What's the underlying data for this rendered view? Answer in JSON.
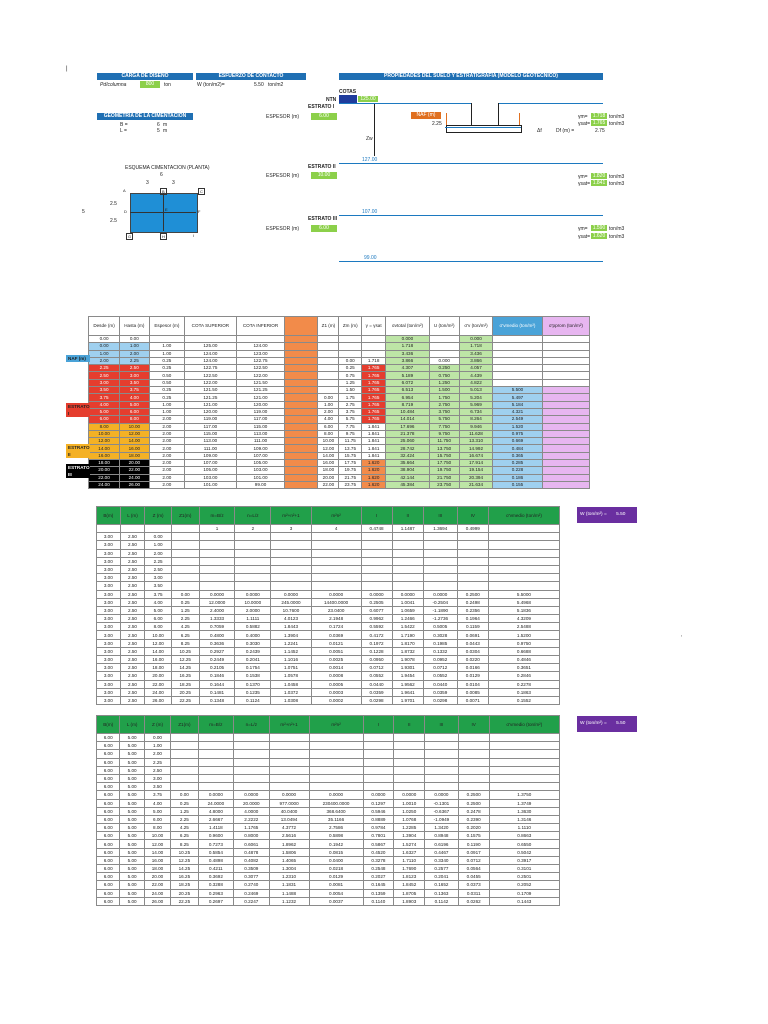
{
  "corner_mark": "|",
  "load": {
    "header": "CARGA DE DISEÑO",
    "label": "Pd/columna",
    "value": "800",
    "unit": "ton"
  },
  "contact": {
    "header": "ESFUERZO DE CONTACTO",
    "label": "W (ton/m2)=",
    "value": "5.50",
    "unit": "ton/m2"
  },
  "soil_header": "PROPIEDADES DEL SUELO Y ESTRATIGRAFIA (MODELO GEOTECNICO)",
  "geometry": {
    "header": "GEOMETRIA DE LA CIMENTACION",
    "rows": [
      {
        "label": "B =",
        "value": "6",
        "unit": "m"
      },
      {
        "label": "L =",
        "value": "5",
        "unit": "m"
      }
    ]
  },
  "profile": {
    "cotas_label": "COTAS",
    "cotas_value": "125.00",
    "ntn_label": "NTN",
    "naf_label": "NAF (m)",
    "naf_value": "2.25",
    "df_label": "Df (m) =",
    "df_value": "2.75",
    "zw_label": "Zw",
    "af_label": "Δf",
    "estrato1": {
      "name": "ESTRATO I",
      "esp_label": "ESPESOR (m)",
      "esp": "6.00",
      "g1": "1.718",
      "g2": "1.765",
      "unit": "ton/m3",
      "cota": "127.00"
    },
    "estrato2": {
      "name": "ESTRATO II",
      "esp_label": "ESPESOR (m)",
      "esp": "10.00",
      "g1": "1.820",
      "g2": "1.841",
      "unit": "ton/m3",
      "cota": "107.00"
    },
    "estrato3": {
      "name": "ESTRATO III",
      "esp_label": "ESPESOR (m)",
      "esp": "6.00",
      "g1": "1.590",
      "g2": "1.620",
      "unit": "ton/m3",
      "cota": "99.00"
    },
    "gm_label": "γm=",
    "gsat_label": "γsat="
  },
  "plan": {
    "title": "ESQUEMA CIMENTACION (PLANTA)",
    "dim_top": "6",
    "dim_half1": "3",
    "dim_half2": "3",
    "dim_left": "5",
    "dim_l1": "2.5",
    "dim_l2": "2.5",
    "points": [
      "A",
      "B",
      "C",
      "D",
      "E",
      "F",
      "G",
      "H",
      "I"
    ]
  },
  "table1": {
    "headers": [
      "Desde (m)",
      "Hasta (m)",
      "Espesor (m)",
      "COTA SUPERIOR",
      "COTA INFERIOR",
      "",
      "Z1 (m)",
      "Zm (m)",
      "γ = γsat",
      "σvtotal (ton/m²)",
      "U (ton/m²)",
      "σ'v (ton/m²)",
      "σ'vmedio (ton/m²)",
      "σ'pprom (ton/m²)"
    ],
    "side_labels": [
      {
        "row": 3,
        "text": "NAF (m)",
        "color": "#4aa3d8"
      },
      {
        "row": 10,
        "text": "ESTRATO I",
        "color": "#e53d2e"
      },
      {
        "row": 16,
        "text": "ESTRATO II",
        "color": "#f4b125"
      },
      {
        "row": 19,
        "text": "ESTRATO III",
        "color": "#000000",
        "fg": "#ffffff"
      }
    ],
    "rows": [
      [
        "0.00",
        "0.00",
        "",
        "",
        "",
        "",
        "",
        "",
        "",
        "0.000",
        "",
        "0.000",
        "",
        ""
      ],
      [
        "0.00",
        "1.00",
        "1.00",
        "125.00",
        "124.00",
        "",
        "",
        "",
        "",
        "1.718",
        "",
        "1.718",
        "",
        ""
      ],
      [
        "1.00",
        "2.00",
        "1.00",
        "124.00",
        "123.00",
        "",
        "",
        "",
        "",
        "3.436",
        "",
        "3.436",
        "",
        ""
      ],
      [
        "2.00",
        "2.25",
        "0.25",
        "124.00",
        "122.75",
        "",
        "",
        "0.00",
        "1.718",
        "3.866",
        "0.000",
        "3.866",
        "",
        ""
      ],
      [
        "2.25",
        "2.50",
        "0.25",
        "122.75",
        "122.50",
        "",
        "",
        "0.25",
        "1.765",
        "4.307",
        "0.250",
        "4.057",
        "",
        ""
      ],
      [
        "2.50",
        "3.00",
        "0.50",
        "122.50",
        "122.00",
        "",
        "",
        "0.75",
        "1.765",
        "5.189",
        "0.750",
        "4.439",
        "",
        ""
      ],
      [
        "3.00",
        "3.50",
        "0.50",
        "122.00",
        "121.50",
        "",
        "",
        "1.25",
        "1.765",
        "6.072",
        "1.250",
        "4.822",
        "",
        ""
      ],
      [
        "3.50",
        "3.75",
        "0.25",
        "121.50",
        "121.25",
        "",
        "",
        "1.50",
        "1.765",
        "6.513",
        "1.500",
        "5.013",
        "5.500",
        ""
      ],
      [
        "3.75",
        "4.00",
        "0.25",
        "121.25",
        "121.00",
        "",
        "0.00",
        "1.75",
        "1.765",
        "6.954",
        "1.750",
        "5.204",
        "5.497",
        ""
      ],
      [
        "4.00",
        "5.00",
        "1.00",
        "121.00",
        "120.00",
        "",
        "1.00",
        "2.75",
        "1.765",
        "8.719",
        "2.750",
        "5.969",
        "5.184",
        ""
      ],
      [
        "5.00",
        "6.00",
        "1.00",
        "120.00",
        "119.00",
        "",
        "2.00",
        "3.75",
        "1.765",
        "10.484",
        "3.750",
        "6.734",
        "4.321",
        ""
      ],
      [
        "6.00",
        "8.00",
        "2.00",
        "119.00",
        "117.00",
        "",
        "4.00",
        "5.75",
        "1.765",
        "14.014",
        "5.750",
        "8.264",
        "2.549",
        ""
      ],
      [
        "8.00",
        "10.00",
        "2.00",
        "117.00",
        "115.00",
        "",
        "6.00",
        "7.75",
        "1.841",
        "17.696",
        "7.750",
        "9.946",
        "1.520",
        ""
      ],
      [
        "10.00",
        "12.00",
        "2.00",
        "115.00",
        "113.00",
        "",
        "8.00",
        "9.75",
        "1.841",
        "21.378",
        "9.750",
        "11.628",
        "0.975",
        ""
      ],
      [
        "12.00",
        "14.00",
        "2.00",
        "113.00",
        "111.00",
        "",
        "10.00",
        "11.75",
        "1.841",
        "25.060",
        "11.750",
        "13.310",
        "0.669",
        ""
      ],
      [
        "14.00",
        "16.00",
        "2.00",
        "111.00",
        "109.00",
        "",
        "12.00",
        "13.75",
        "1.841",
        "28.742",
        "13.750",
        "14.992",
        "0.484",
        ""
      ],
      [
        "16.00",
        "18.00",
        "2.00",
        "109.00",
        "107.00",
        "",
        "14.00",
        "15.75",
        "1.841",
        "32.424",
        "15.750",
        "16.674",
        "0.365",
        ""
      ],
      [
        "18.00",
        "20.00",
        "2.00",
        "107.00",
        "105.00",
        "",
        "16.00",
        "17.75",
        "1.620",
        "35.664",
        "17.750",
        "17.914",
        "0.285",
        ""
      ],
      [
        "20.00",
        "22.00",
        "2.00",
        "105.00",
        "103.00",
        "",
        "18.00",
        "19.75",
        "1.620",
        "38.904",
        "19.750",
        "19.154",
        "0.228",
        ""
      ],
      [
        "22.00",
        "24.00",
        "2.00",
        "103.00",
        "101.00",
        "",
        "20.00",
        "21.75",
        "1.620",
        "42.144",
        "21.750",
        "20.394",
        "0.186",
        ""
      ],
      [
        "24.00",
        "26.00",
        "2.00",
        "101.00",
        "99.00",
        "",
        "22.00",
        "23.75",
        "1.620",
        "45.384",
        "23.750",
        "21.634",
        "0.155",
        ""
      ]
    ]
  },
  "table2": {
    "w_label": "W (ton/m²) =",
    "w_value": "5.50",
    "headers": [
      "B(m)",
      "L (m)",
      "Z (m)",
      "Z1(m)",
      "m=B/z",
      "n=L/z",
      "m²+n²+1",
      "m²n²",
      "I",
      "II",
      "III",
      "IV",
      "σ'vmedio (ton/m²)"
    ],
    "top_row": [
      "",
      "",
      "",
      "",
      "1",
      "2",
      "3",
      "4",
      "0.4748",
      "1.1487",
      "1.3694",
      "0.4999",
      ""
    ],
    "rows": [
      [
        "3.00",
        "2.50",
        "0.00",
        "",
        "",
        "",
        "",
        "",
        "",
        "",
        "",
        "",
        ""
      ],
      [
        "3.00",
        "2.50",
        "1.00",
        "",
        "",
        "",
        "",
        "",
        "",
        "",
        "",
        "",
        ""
      ],
      [
        "3.00",
        "2.50",
        "2.00",
        "",
        "",
        "",
        "",
        "",
        "",
        "",
        "",
        "",
        ""
      ],
      [
        "3.00",
        "2.50",
        "2.25",
        "",
        "",
        "",
        "",
        "",
        "",
        "",
        "",
        "",
        ""
      ],
      [
        "3.00",
        "2.50",
        "2.50",
        "",
        "",
        "",
        "",
        "",
        "",
        "",
        "",
        "",
        ""
      ],
      [
        "3.00",
        "2.50",
        "3.00",
        "",
        "",
        "",
        "",
        "",
        "",
        "",
        "",
        "",
        ""
      ],
      [
        "3.00",
        "2.50",
        "3.50",
        "",
        "",
        "",
        "",
        "",
        "",
        "",
        "",
        "",
        ""
      ],
      [
        "3.00",
        "2.50",
        "3.75",
        "0.00",
        "0.0000",
        "0.0000",
        "0.0000",
        "0.0000",
        "0.0000",
        "0.0000",
        "0.0000",
        "0.2500",
        "5.5000"
      ],
      [
        "3.00",
        "2.50",
        "4.00",
        "0.25",
        "12.0000",
        "10.0000",
        "245.0000",
        "14400.0000",
        "0.2505",
        "1.0041",
        "-0.2504",
        "0.2498",
        "5.4968"
      ],
      [
        "3.00",
        "2.50",
        "5.00",
        "1.25",
        "2.4000",
        "2.0000",
        "10.7600",
        "23.0400",
        "0.6077",
        "1.0659",
        "-1.1890",
        "0.2356",
        "5.1836"
      ],
      [
        "3.00",
        "2.50",
        "6.00",
        "2.25",
        "1.3333",
        "1.1111",
        "4.0123",
        "2.1948",
        "0.9962",
        "1.2466",
        "-1.2736",
        "0.1964",
        "4.3209"
      ],
      [
        "3.00",
        "2.50",
        "8.00",
        "4.25",
        "0.7059",
        "0.5882",
        "1.8443",
        "0.1724",
        "0.5592",
        "1.5422",
        "0.5005",
        "0.1159",
        "2.5488"
      ],
      [
        "3.00",
        "2.50",
        "10.00",
        "6.25",
        "0.4800",
        "0.4000",
        "1.3904",
        "0.0369",
        "0.4172",
        "1.7190",
        "0.3028",
        "0.0691",
        "1.5200"
      ],
      [
        "3.00",
        "2.50",
        "12.00",
        "8.25",
        "0.3636",
        "0.3030",
        "1.2241",
        "0.0121",
        "0.1972",
        "1.8170",
        "0.1985",
        "0.0443",
        "0.9750"
      ],
      [
        "3.00",
        "2.50",
        "14.00",
        "10.25",
        "0.2927",
        "0.2439",
        "1.1452",
        "0.0051",
        "0.1228",
        "1.8732",
        "0.1332",
        "0.0304",
        "0.6688"
      ],
      [
        "3.00",
        "2.50",
        "16.00",
        "12.25",
        "0.2449",
        "0.2041",
        "1.1016",
        "0.0025",
        "0.0950",
        "1.9078",
        "0.0952",
        "0.0220",
        "0.4846"
      ],
      [
        "3.00",
        "2.50",
        "18.00",
        "14.25",
        "0.2105",
        "0.1754",
        "1.0751",
        "0.0014",
        "0.0712",
        "1.9301",
        "0.0712",
        "0.0166",
        "0.3651"
      ],
      [
        "3.00",
        "2.50",
        "20.00",
        "16.25",
        "0.1846",
        "0.1538",
        "1.0578",
        "0.0008",
        "0.0552",
        "1.9454",
        "0.0552",
        "0.0129",
        "0.2846"
      ],
      [
        "3.00",
        "2.50",
        "22.00",
        "18.25",
        "0.1644",
        "0.1370",
        "1.0458",
        "0.0005",
        "0.0440",
        "1.9562",
        "0.0440",
        "0.0104",
        "0.2278"
      ],
      [
        "3.00",
        "2.50",
        "24.00",
        "20.25",
        "0.1481",
        "0.1235",
        "1.0372",
        "0.0003",
        "0.0359",
        "1.9641",
        "0.0359",
        "0.0085",
        "0.1863"
      ],
      [
        "3.00",
        "2.50",
        "26.00",
        "22.25",
        "0.1348",
        "0.1124",
        "1.0308",
        "0.0002",
        "0.0298",
        "1.9701",
        "0.0298",
        "0.0071",
        "0.1552"
      ]
    ]
  },
  "table3": {
    "w_label": "W (ton/m²) =",
    "w_value": "5.50",
    "headers": [
      "B(m)",
      "L (m)",
      "Z (m)",
      "Z1(m)",
      "m=B/z",
      "n=L/z",
      "m²+n²+1",
      "m²n²",
      "I",
      "II",
      "III",
      "IV",
      "σ'vmedio (ton/m²)"
    ],
    "rows": [
      [
        "6.00",
        "5.00",
        "0.00",
        "",
        "",
        "",
        "",
        "",
        "",
        "",
        "",
        "",
        ""
      ],
      [
        "6.00",
        "5.00",
        "1.00",
        "",
        "",
        "",
        "",
        "",
        "",
        "",
        "",
        "",
        ""
      ],
      [
        "6.00",
        "5.00",
        "2.00",
        "",
        "",
        "",
        "",
        "",
        "",
        "",
        "",
        "",
        ""
      ],
      [
        "6.00",
        "5.00",
        "2.25",
        "",
        "",
        "",
        "",
        "",
        "",
        "",
        "",
        "",
        ""
      ],
      [
        "6.00",
        "5.00",
        "2.50",
        "",
        "",
        "",
        "",
        "",
        "",
        "",
        "",
        "",
        ""
      ],
      [
        "6.00",
        "5.00",
        "3.00",
        "",
        "",
        "",
        "",
        "",
        "",
        "",
        "",
        "",
        ""
      ],
      [
        "6.00",
        "5.00",
        "3.50",
        "",
        "",
        "",
        "",
        "",
        "",
        "",
        "",
        "",
        ""
      ],
      [
        "6.00",
        "5.00",
        "3.75",
        "0.00",
        "0.0000",
        "0.0000",
        "0.0000",
        "0.0000",
        "0.0000",
        "0.0000",
        "0.0000",
        "0.2500",
        "1.3750"
      ],
      [
        "6.00",
        "5.00",
        "4.00",
        "0.25",
        "24.0000",
        "20.0000",
        "977.0000",
        "230400.0000",
        "0.1297",
        "1.0010",
        "-0.1301",
        "0.2500",
        "1.3749"
      ],
      [
        "6.00",
        "5.00",
        "5.00",
        "1.25",
        "4.8000",
        "4.0000",
        "40.0400",
        "368.6400",
        "0.5946",
        "1.0250",
        "-0.6367",
        "0.2478",
        "1.3630"
      ],
      [
        "6.00",
        "5.00",
        "6.00",
        "2.25",
        "2.6667",
        "2.2222",
        "13.0494",
        "35.1166",
        "0.8889",
        "1.0768",
        "-1.0949",
        "0.2390",
        "1.3146"
      ],
      [
        "6.00",
        "5.00",
        "8.00",
        "4.25",
        "1.4118",
        "1.1765",
        "4.3772",
        "2.7586",
        "0.9784",
        "1.2285",
        "1.3420",
        "0.2020",
        "1.1110"
      ],
      [
        "6.00",
        "5.00",
        "10.00",
        "6.25",
        "0.9600",
        "0.8000",
        "2.5616",
        "0.5898",
        "0.7801",
        "1.3904",
        "0.8948",
        "0.1575",
        "0.8663"
      ],
      [
        "6.00",
        "5.00",
        "12.00",
        "8.25",
        "0.7273",
        "0.6061",
        "1.8962",
        "0.1942",
        "0.5867",
        "1.5274",
        "0.6196",
        "0.1190",
        "0.6550"
      ],
      [
        "6.00",
        "5.00",
        "14.00",
        "10.25",
        "0.5854",
        "0.4878",
        "1.5806",
        "0.0815",
        "0.4520",
        "1.6327",
        "0.4467",
        "0.0917",
        "0.5042"
      ],
      [
        "6.00",
        "5.00",
        "16.00",
        "12.25",
        "0.4898",
        "0.4082",
        "1.4065",
        "0.0400",
        "0.3278",
        "1.7110",
        "0.3340",
        "0.0712",
        "0.3917"
      ],
      [
        "6.00",
        "5.00",
        "18.00",
        "14.25",
        "0.4211",
        "0.3509",
        "1.3004",
        "0.0218",
        "0.2548",
        "1.7690",
        "0.2577",
        "0.0564",
        "0.3101"
      ],
      [
        "6.00",
        "5.00",
        "20.00",
        "16.25",
        "0.3692",
        "0.3077",
        "1.2310",
        "0.0129",
        "0.2027",
        "1.8123",
        "0.2041",
        "0.0455",
        "0.2501"
      ],
      [
        "6.00",
        "5.00",
        "22.00",
        "18.25",
        "0.3288",
        "0.2740",
        "1.1831",
        "0.0081",
        "0.1645",
        "1.8452",
        "0.1652",
        "0.0373",
        "0.2052"
      ],
      [
        "6.00",
        "5.00",
        "24.00",
        "20.25",
        "0.2963",
        "0.2469",
        "1.1488",
        "0.0054",
        "0.1359",
        "1.8705",
        "0.1363",
        "0.0311",
        "0.1709"
      ],
      [
        "6.00",
        "5.00",
        "26.00",
        "22.25",
        "0.2697",
        "0.2247",
        "1.1232",
        "0.0037",
        "0.1140",
        "1.8903",
        "0.1142",
        "0.0262",
        "0.1443"
      ]
    ]
  },
  "stray_mark": ","
}
